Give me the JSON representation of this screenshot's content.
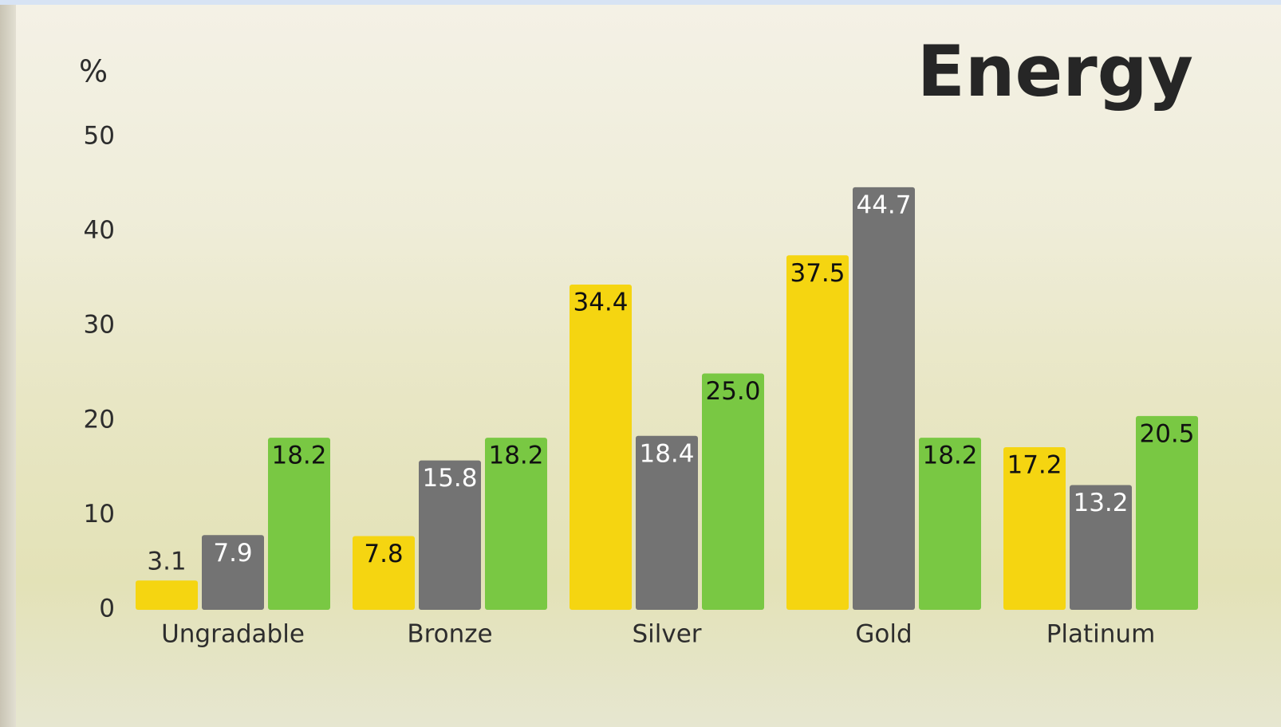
{
  "chart_data": {
    "type": "bar",
    "title": "Energy",
    "y_label": "%",
    "categories": [
      "Ungradable",
      "Bronze",
      "Silver",
      "Gold",
      "Platinum"
    ],
    "series": [
      {
        "color": "#f5d511",
        "values": [
          3.1,
          7.8,
          34.4,
          37.5,
          17.2
        ]
      },
      {
        "color": "#737373",
        "values": [
          7.9,
          15.8,
          18.4,
          44.7,
          13.2
        ]
      },
      {
        "color": "#79c843",
        "values": [
          18.2,
          18.2,
          25.0,
          18.2,
          20.5
        ],
        "value_labels": [
          "18.2",
          "18.2",
          "25.0",
          "18.2",
          "20.5"
        ]
      }
    ],
    "ylim": [
      0,
      50
    ],
    "yticks": [
      0,
      10,
      20,
      30,
      40,
      50
    ],
    "grid": false
  }
}
